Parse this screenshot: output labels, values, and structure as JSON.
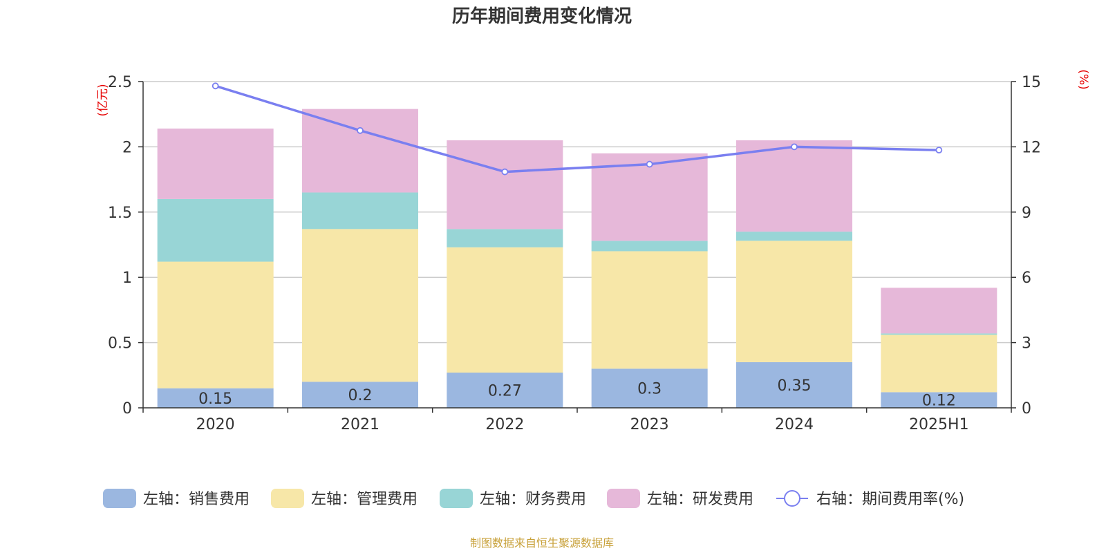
{
  "chart_data": {
    "type": "bar",
    "title": "历年期间费用变化情况",
    "categories": [
      "2020",
      "2021",
      "2022",
      "2023",
      "2024",
      "2025H1"
    ],
    "left_axis": {
      "unit": "(亿元)",
      "ylim": [
        0,
        2.5
      ],
      "ticks": [
        "0",
        "0.5",
        "1",
        "1.5",
        "2",
        "2.5"
      ],
      "tick_values": [
        0,
        0.5,
        1,
        1.5,
        2,
        2.5
      ]
    },
    "right_axis": {
      "unit": "(%)",
      "ylim": [
        0,
        15
      ],
      "ticks": [
        "0",
        "3",
        "6",
        "9",
        "12",
        "15"
      ],
      "tick_values": [
        0,
        3,
        6,
        9,
        12,
        15
      ]
    },
    "grid": true,
    "legend_position": "bottom",
    "series": [
      {
        "name": "左轴：销售费用",
        "type": "bar",
        "axis": "left",
        "color": "#9bb7e0",
        "values": [
          0.15,
          0.2,
          0.27,
          0.3,
          0.35,
          0.12
        ],
        "labels": [
          "0.15",
          "0.2",
          "0.27",
          "0.3",
          "0.35",
          "0.12"
        ]
      },
      {
        "name": "左轴：管理费用",
        "type": "bar",
        "axis": "left",
        "color": "#f7e7a8",
        "values": [
          0.97,
          1.17,
          0.96,
          0.9,
          0.93,
          0.44
        ]
      },
      {
        "name": "左轴：财务费用",
        "type": "bar",
        "axis": "left",
        "color": "#98d5d6",
        "values": [
          0.48,
          0.28,
          0.14,
          0.08,
          0.07,
          0.01
        ]
      },
      {
        "name": "左轴：研发费用",
        "type": "bar",
        "axis": "left",
        "color": "#e6b8d9",
        "values": [
          0.54,
          0.64,
          0.68,
          0.67,
          0.7,
          0.35
        ]
      },
      {
        "name": "右轴：期间费用率(%)",
        "type": "line",
        "axis": "right",
        "color": "#7a7ff0",
        "values": [
          14.8,
          12.75,
          10.85,
          11.2,
          12.0,
          11.85
        ]
      }
    ],
    "source": "制图数据来自恒生聚源数据库"
  }
}
